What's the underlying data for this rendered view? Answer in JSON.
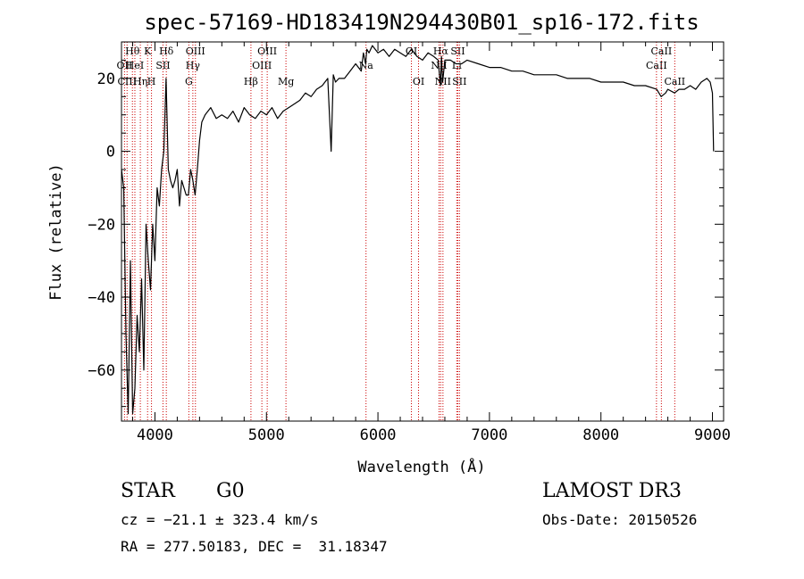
{
  "chart_data": {
    "type": "line",
    "title": "spec-57169-HD183419N294430B01_sp16-172.fits",
    "xlabel": "Wavelength (Å)",
    "ylabel": "Flux (relative)",
    "xlim": [
      3700,
      9100
    ],
    "ylim": [
      -74,
      30
    ],
    "x_ticks": [
      4000,
      5000,
      6000,
      7000,
      8000,
      9000
    ],
    "y_ticks": [
      -60,
      -40,
      -20,
      0,
      20
    ],
    "x_minor_step": 200,
    "y_minor_step": 5,
    "x_tick_labels": [
      "4000",
      "5000",
      "6000",
      "7000",
      "8000",
      "9000"
    ],
    "y_tick_labels": [
      "−60",
      "−40",
      "−20",
      "0",
      "20"
    ],
    "series": [
      {
        "name": "flux",
        "color": "#000000",
        "x": [
          3700,
          3720,
          3740,
          3760,
          3780,
          3800,
          3820,
          3840,
          3860,
          3880,
          3900,
          3920,
          3940,
          3960,
          3980,
          4000,
          4020,
          4040,
          4060,
          4080,
          4100,
          4120,
          4140,
          4160,
          4180,
          4200,
          4220,
          4240,
          4260,
          4280,
          4300,
          4320,
          4340,
          4360,
          4380,
          4400,
          4420,
          4450,
          4500,
          4550,
          4600,
          4650,
          4700,
          4750,
          4800,
          4850,
          4900,
          4950,
          5000,
          5050,
          5100,
          5150,
          5200,
          5250,
          5300,
          5350,
          5400,
          5450,
          5500,
          5550,
          5580,
          5600,
          5620,
          5650,
          5700,
          5750,
          5800,
          5850,
          5870,
          5890,
          5900,
          5920,
          5950,
          6000,
          6050,
          6100,
          6150,
          6200,
          6250,
          6300,
          6350,
          6400,
          6450,
          6500,
          6540,
          6560,
          6570,
          6580,
          6600,
          6650,
          6700,
          6750,
          6800,
          6900,
          7000,
          7100,
          7200,
          7300,
          7400,
          7500,
          7600,
          7700,
          7800,
          7900,
          8000,
          8100,
          8200,
          8300,
          8400,
          8500,
          8540,
          8580,
          8600,
          8660,
          8700,
          8750,
          8800,
          8850,
          8900,
          8950,
          8980,
          9000,
          9010
        ],
        "y": [
          -5,
          -10,
          -50,
          -72,
          -30,
          -72,
          -65,
          -45,
          -55,
          -35,
          -60,
          -20,
          -30,
          -38,
          -20,
          -30,
          -10,
          -15,
          -5,
          0,
          20,
          -5,
          -8,
          -10,
          -8,
          -5,
          -15,
          -8,
          -10,
          -12,
          -12,
          -5,
          -8,
          -12,
          -5,
          3,
          8,
          10,
          12,
          9,
          10,
          9,
          11,
          8,
          12,
          10,
          9,
          11,
          10,
          12,
          9,
          11,
          12,
          13,
          14,
          16,
          15,
          17,
          18,
          20,
          0,
          21,
          19,
          20,
          20,
          22,
          24,
          22,
          27,
          24,
          28,
          27,
          29,
          27,
          28,
          26,
          28,
          27,
          26,
          28,
          26,
          25,
          27,
          26,
          25,
          18,
          26,
          19,
          25,
          25,
          24,
          24,
          25,
          24,
          23,
          23,
          22,
          22,
          21,
          21,
          21,
          20,
          20,
          20,
          19,
          19,
          19,
          18,
          18,
          17,
          15,
          16,
          17,
          16,
          17,
          17,
          18,
          17,
          19,
          20,
          19,
          16,
          0
        ]
      }
    ],
    "line_markers": [
      {
        "wavelength": 3727,
        "label": "OII",
        "row": 2
      },
      {
        "wavelength": 3750,
        "label": "CIII",
        "row": 3
      },
      {
        "wavelength": 3798,
        "label": "Hθ",
        "row": 1
      },
      {
        "wavelength": 3820,
        "label": "HeI",
        "row": 2
      },
      {
        "wavelength": 3869,
        "label": "Hη",
        "row": 3
      },
      {
        "wavelength": 3934,
        "label": "K",
        "row": 1
      },
      {
        "wavelength": 3969,
        "label": "H",
        "row": 3
      },
      {
        "wavelength": 4072,
        "label": "SII",
        "row": 2
      },
      {
        "wavelength": 4102,
        "label": "Hδ",
        "row": 1
      },
      {
        "wavelength": 4304,
        "label": "G",
        "row": 3
      },
      {
        "wavelength": 4340,
        "label": "Hγ",
        "row": 2
      },
      {
        "wavelength": 4363,
        "label": "OIII",
        "row": 1
      },
      {
        "wavelength": 4861,
        "label": "Hβ",
        "row": 3
      },
      {
        "wavelength": 4959,
        "label": "OIII",
        "row": 2
      },
      {
        "wavelength": 5007,
        "label": "OIII",
        "row": 1
      },
      {
        "wavelength": 5175,
        "label": "Mg",
        "row": 3
      },
      {
        "wavelength": 5893,
        "label": "Na",
        "row": 2
      },
      {
        "wavelength": 6300,
        "label": "OI",
        "row": 1
      },
      {
        "wavelength": 6364,
        "label": "OI",
        "row": 3
      },
      {
        "wavelength": 6548,
        "label": "NII",
        "row": 2
      },
      {
        "wavelength": 6563,
        "label": "Hα",
        "row": 1
      },
      {
        "wavelength": 6583,
        "label": "NII",
        "row": 3
      },
      {
        "wavelength": 6707,
        "label": "Li",
        "row": 2
      },
      {
        "wavelength": 6716,
        "label": "SII",
        "row": 1
      },
      {
        "wavelength": 6731,
        "label": "SII",
        "row": 3
      },
      {
        "wavelength": 8498,
        "label": "CaII",
        "row": 2
      },
      {
        "wavelength": 8542,
        "label": "CaII",
        "row": 1
      },
      {
        "wavelength": 8662,
        "label": "CaII",
        "row": 3
      }
    ],
    "marker_color": "#cc0000"
  },
  "info": {
    "object_type": "STAR",
    "subclass": "G0",
    "survey": "LAMOST DR3",
    "cz": "cz = −21.1 ± 323.4 km/s",
    "obs_date": "Obs-Date: 20150526",
    "coords": "RA = 277.50183, DEC =  31.18347"
  }
}
